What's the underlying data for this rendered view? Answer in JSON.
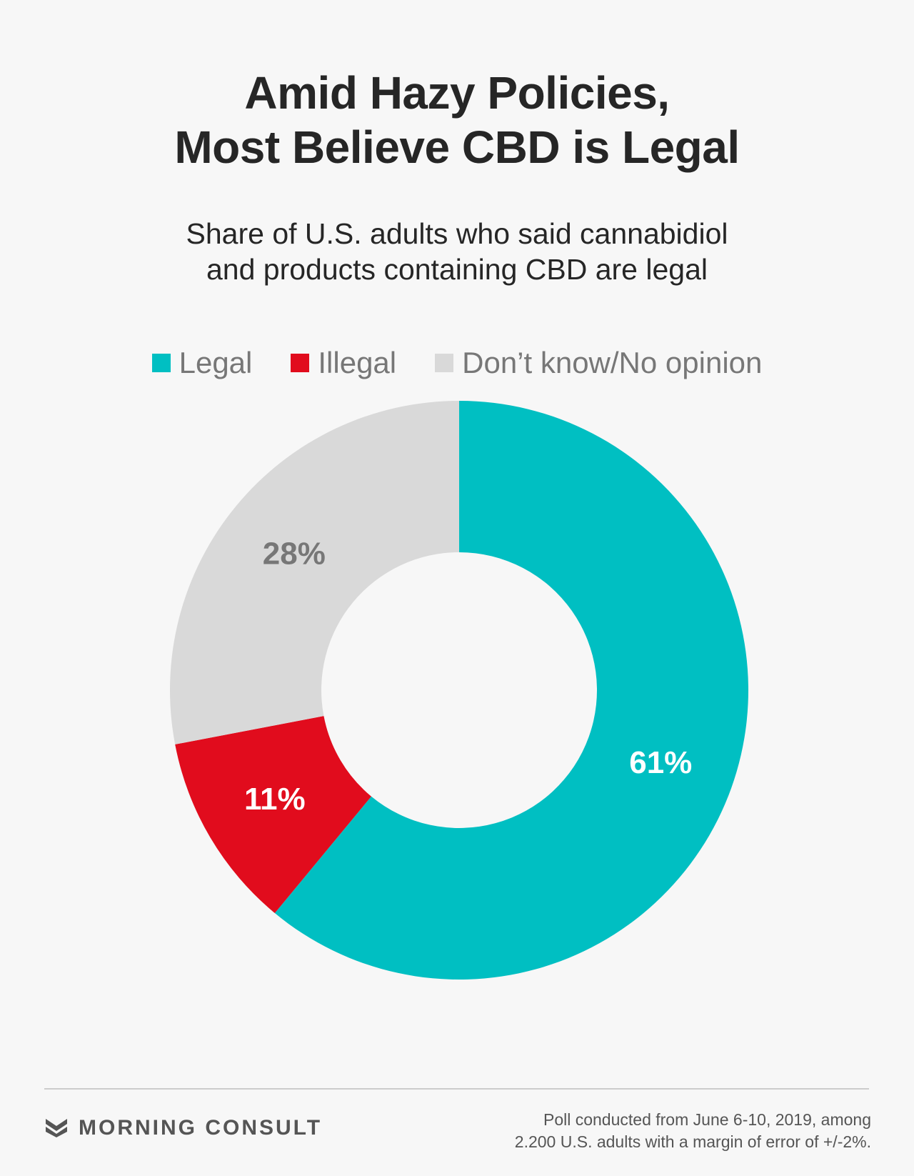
{
  "title": {
    "line1": "Amid Hazy Policies,",
    "line2": "Most Believe CBD is Legal"
  },
  "subtitle": {
    "line1": "Share of U.S. adults who said cannabidiol",
    "line2": "and products containing CBD are legal"
  },
  "legend": [
    {
      "label": "Legal",
      "color": "#00bfc2"
    },
    {
      "label": "Illegal",
      "color": "#e10c1d"
    },
    {
      "label": "Don’t know/No opinion",
      "color": "#d9d9d9"
    }
  ],
  "chart_data": {
    "type": "pie",
    "title": "Amid Hazy Policies, Most Believe CBD is Legal",
    "subtitle": "Share of U.S. adults who said cannabidiol and products containing CBD are legal",
    "donut": true,
    "legend_position": "top",
    "categories": [
      "Legal",
      "Illegal",
      "Don’t know/No opinion"
    ],
    "values": [
      61,
      11,
      28
    ],
    "data_labels": [
      "61%",
      "11%",
      "28%"
    ],
    "colors": [
      "#00bfc2",
      "#e10c1d",
      "#d9d9d9"
    ],
    "label_colors": [
      "#ffffff",
      "#ffffff",
      "#777777"
    ]
  },
  "brand": {
    "name": "MORNING CONSULT",
    "icon": "morning-consult-logo-icon"
  },
  "note": {
    "line1": "Poll conducted from June 6-10, 2019, among",
    "line2": "2.200 U.S. adults with a margin of error of +/-2%."
  }
}
